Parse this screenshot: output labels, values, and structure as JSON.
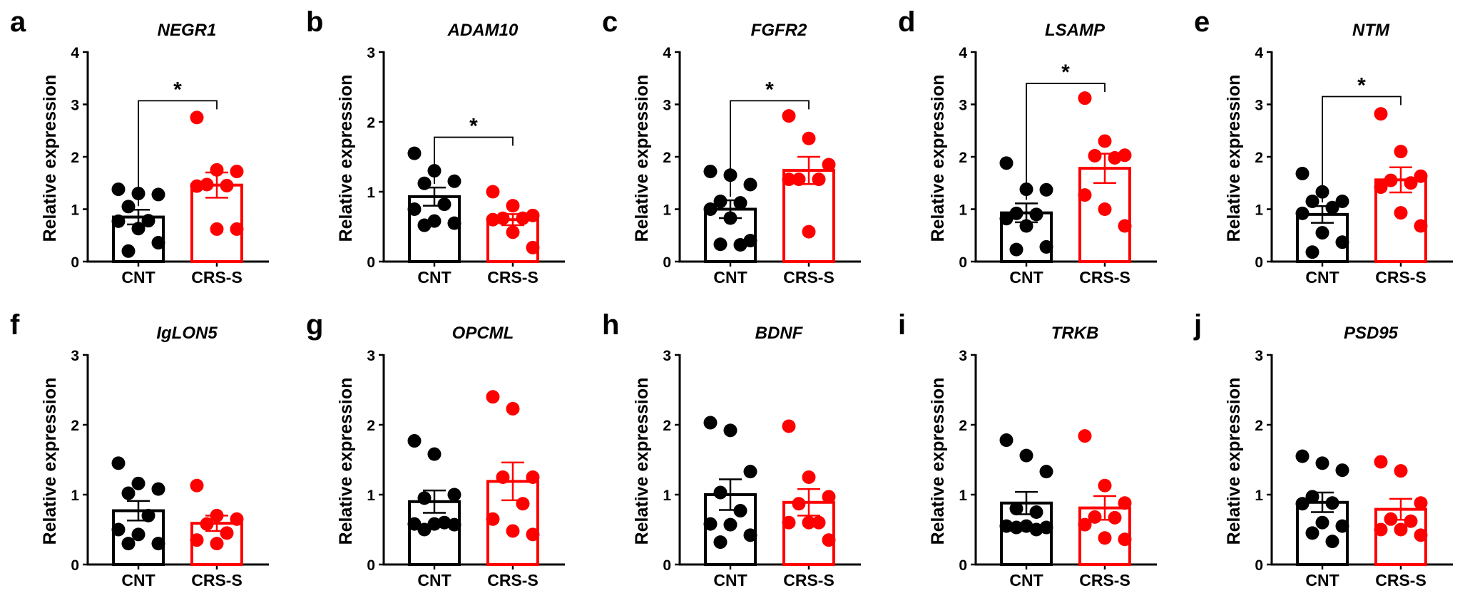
{
  "figure": {
    "colors": {
      "CNT": "#000000",
      "CRS-S": "#ff0000"
    }
  },
  "chart_data": [
    {
      "type": "bar",
      "letter": "a",
      "title": "NEGR1",
      "ylabel": "Relative expression",
      "categories": [
        "CNT",
        "CRS-S"
      ],
      "ylim": [
        0,
        4
      ],
      "yticks": [
        0,
        1,
        2,
        3,
        4
      ],
      "series": [
        {
          "name": "CNT",
          "mean": 0.85,
          "sem": 0.14,
          "points": [
            1.3,
            1.38,
            1.28,
            1.05,
            0.77,
            0.78,
            0.63,
            0.36,
            0.2
          ]
        },
        {
          "name": "CRS-S",
          "mean": 1.46,
          "sem": 0.24,
          "points": [
            2.75,
            1.75,
            1.72,
            1.45,
            1.47,
            1.44,
            0.62,
            0.62
          ]
        }
      ],
      "significance": {
        "label": "*",
        "bracket_y": 3.07
      }
    },
    {
      "type": "bar",
      "letter": "b",
      "title": "ADAM10",
      "ylabel": "Relative expression",
      "categories": [
        "CNT",
        "CRS-S"
      ],
      "ylim": [
        0,
        3
      ],
      "yticks": [
        0,
        1,
        2,
        3
      ],
      "series": [
        {
          "name": "CNT",
          "mean": 0.93,
          "sem": 0.13,
          "points": [
            1.55,
            1.3,
            1.12,
            1.15,
            0.82,
            0.75,
            0.52,
            0.58,
            0.55
          ]
        },
        {
          "name": "CRS-S",
          "mean": 0.6,
          "sem": 0.08,
          "points": [
            1.0,
            0.8,
            0.66,
            0.62,
            0.6,
            0.62,
            0.42,
            0.2
          ]
        }
      ],
      "significance": {
        "label": "*",
        "bracket_y": 1.78
      }
    },
    {
      "type": "bar",
      "letter": "c",
      "title": "FGFR2",
      "ylabel": "Relative expression",
      "categories": [
        "CNT",
        "CRS-S"
      ],
      "ylim": [
        0,
        4
      ],
      "yticks": [
        0,
        1,
        2,
        3,
        4
      ],
      "series": [
        {
          "name": "CNT",
          "mean": 1.0,
          "sem": 0.17,
          "points": [
            1.65,
            1.72,
            1.47,
            1.12,
            1.15,
            1.0,
            0.83,
            0.4,
            0.32,
            0.33
          ]
        },
        {
          "name": "CRS-S",
          "mean": 1.74,
          "sem": 0.26,
          "points": [
            2.78,
            2.35,
            1.85,
            1.57,
            1.57,
            1.57,
            0.57
          ]
        }
      ],
      "significance": {
        "label": "*",
        "bracket_y": 3.07
      }
    },
    {
      "type": "bar",
      "letter": "d",
      "title": "LSAMP",
      "ylabel": "Relative expression",
      "categories": [
        "CNT",
        "CRS-S"
      ],
      "ylim": [
        0,
        4
      ],
      "yticks": [
        0,
        1,
        2,
        3,
        4
      ],
      "series": [
        {
          "name": "CNT",
          "mean": 0.93,
          "sem": 0.18,
          "points": [
            1.88,
            1.38,
            1.37,
            0.92,
            0.9,
            0.82,
            0.68,
            0.28,
            0.23
          ]
        },
        {
          "name": "CRS-S",
          "mean": 1.78,
          "sem": 0.28,
          "points": [
            3.12,
            2.3,
            2.02,
            2.03,
            1.98,
            1.27,
            1.0,
            0.68
          ]
        }
      ],
      "significance": {
        "label": "*",
        "bracket_y": 3.4
      }
    },
    {
      "type": "bar",
      "letter": "e",
      "title": "NTM",
      "ylabel": "Relative expression",
      "categories": [
        "CNT",
        "CRS-S"
      ],
      "ylim": [
        0,
        4
      ],
      "yticks": [
        0,
        1,
        2,
        3,
        4
      ],
      "series": [
        {
          "name": "CNT",
          "mean": 0.9,
          "sem": 0.16,
          "points": [
            1.68,
            1.33,
            1.15,
            1.15,
            1.03,
            0.92,
            0.55,
            0.37,
            0.18
          ]
        },
        {
          "name": "CRS-S",
          "mean": 1.56,
          "sem": 0.24,
          "points": [
            2.82,
            2.1,
            1.63,
            1.55,
            1.5,
            1.42,
            0.93,
            0.68
          ]
        }
      ],
      "significance": {
        "label": "*",
        "bracket_y": 3.15
      }
    },
    {
      "type": "bar",
      "letter": "f",
      "title": "IgLON5",
      "ylabel": "Relative expression",
      "categories": [
        "CNT",
        "CRS-S"
      ],
      "ylim": [
        0,
        3
      ],
      "yticks": [
        0,
        1,
        2,
        3
      ],
      "series": [
        {
          "name": "CNT",
          "mean": 0.77,
          "sem": 0.14,
          "points": [
            1.45,
            1.16,
            1.08,
            1.02,
            0.7,
            0.5,
            0.43,
            0.3,
            0.3
          ]
        },
        {
          "name": "CRS-S",
          "mean": 0.59,
          "sem": 0.11,
          "points": [
            1.13,
            0.7,
            0.65,
            0.58,
            0.45,
            0.35,
            0.3
          ]
        }
      ],
      "significance": null
    },
    {
      "type": "bar",
      "letter": "g",
      "title": "OPCML",
      "ylabel": "Relative expression",
      "categories": [
        "CNT",
        "CRS-S"
      ],
      "ylim": [
        0,
        3
      ],
      "yticks": [
        0,
        1,
        2,
        3
      ],
      "series": [
        {
          "name": "CNT",
          "mean": 0.9,
          "sem": 0.16,
          "points": [
            1.77,
            1.58,
            1.0,
            0.95,
            0.6,
            0.58,
            0.57,
            0.58,
            0.5
          ]
        },
        {
          "name": "CRS-S",
          "mean": 1.19,
          "sem": 0.27,
          "points": [
            2.4,
            2.23,
            1.25,
            1.25,
            0.87,
            0.65,
            0.48,
            0.43
          ]
        }
      ],
      "significance": null
    },
    {
      "type": "bar",
      "letter": "h",
      "title": "BDNF",
      "ylabel": "Relative expression",
      "categories": [
        "CNT",
        "CRS-S"
      ],
      "ylim": [
        0,
        3
      ],
      "yticks": [
        0,
        1,
        2,
        3
      ],
      "series": [
        {
          "name": "CNT",
          "mean": 1.0,
          "sem": 0.22,
          "points": [
            2.03,
            1.92,
            1.33,
            1.03,
            0.77,
            0.57,
            0.58,
            0.42,
            0.32
          ]
        },
        {
          "name": "CRS-S",
          "mean": 0.89,
          "sem": 0.19,
          "points": [
            1.98,
            1.25,
            0.97,
            0.87,
            0.6,
            0.6,
            0.6,
            0.35
          ]
        }
      ],
      "significance": null
    },
    {
      "type": "bar",
      "letter": "i",
      "title": "TRKB",
      "ylabel": "Relative expression",
      "categories": [
        "CNT",
        "CRS-S"
      ],
      "ylim": [
        0,
        3
      ],
      "yticks": [
        0,
        1,
        2,
        3
      ],
      "series": [
        {
          "name": "CNT",
          "mean": 0.88,
          "sem": 0.16,
          "points": [
            1.78,
            1.56,
            1.33,
            0.8,
            0.75,
            0.55,
            0.55,
            0.53,
            0.53,
            0.5
          ]
        },
        {
          "name": "CRS-S",
          "mean": 0.81,
          "sem": 0.17,
          "points": [
            1.84,
            1.13,
            0.88,
            0.68,
            0.67,
            0.57,
            0.38,
            0.36
          ]
        }
      ],
      "significance": null
    },
    {
      "type": "bar",
      "letter": "j",
      "title": "PSD95",
      "ylabel": "Relative expression",
      "categories": [
        "CNT",
        "CRS-S"
      ],
      "ylim": [
        0,
        3
      ],
      "yticks": [
        0,
        1,
        2,
        3
      ],
      "series": [
        {
          "name": "CNT",
          "mean": 0.89,
          "sem": 0.14,
          "points": [
            1.55,
            1.45,
            1.35,
            0.97,
            0.88,
            0.87,
            0.6,
            0.55,
            0.45,
            0.33
          ]
        },
        {
          "name": "CRS-S",
          "mean": 0.79,
          "sem": 0.15,
          "points": [
            1.47,
            1.34,
            0.88,
            0.65,
            0.62,
            0.5,
            0.5,
            0.42
          ]
        }
      ],
      "significance": null
    }
  ]
}
